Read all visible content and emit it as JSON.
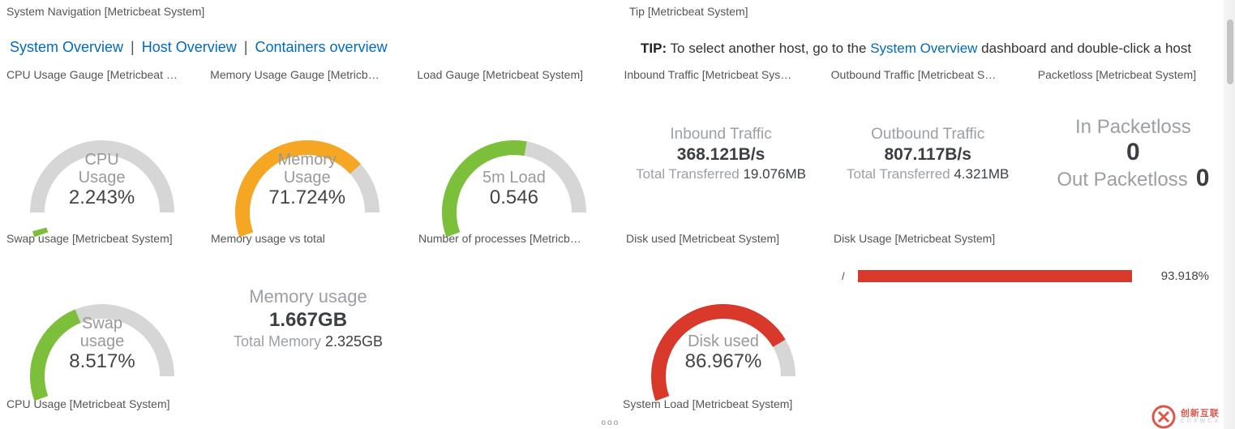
{
  "colors": {
    "link": "#016bb8",
    "text_muted": "#9ca0a5",
    "text_dark": "#3b3f44",
    "gauge_track": "#d6d6d6",
    "green": "#7bbf3a",
    "orange": "#f5a623",
    "red": "#d9392a",
    "scrollbar_thumb": "#c4c4c4"
  },
  "nav": {
    "title": "System Navigation [Metricbeat System]",
    "links": [
      "System Overview",
      "Host Overview",
      "Containers overview"
    ],
    "sep": "|"
  },
  "tip": {
    "title": "Tip [Metricbeat System]",
    "prefix": "TIP:",
    "before": " To select another host, go to the ",
    "link": "System Overview",
    "after": " dashboard and double-click a host name"
  },
  "gauges_row": [
    {
      "title": "CPU Usage Gauge [Metricbeat …",
      "label_top": "CPU",
      "label_bot": "Usage",
      "value_text": "2.243%",
      "value_pct": 2.243,
      "color": "#7bbf3a"
    },
    {
      "title": "Memory Usage Gauge [Metricb…",
      "label_top": "Memory",
      "label_bot": "Usage",
      "value_text": "71.724%",
      "value_pct": 71.724,
      "color": "#f5a623"
    },
    {
      "title": "Load Gauge [Metricbeat System]",
      "label_top": "5m Load",
      "label_bot": "",
      "value_text": "0.546",
      "value_pct": 54.6,
      "color": "#7bbf3a"
    }
  ],
  "traffic": {
    "inbound": {
      "title": "Inbound Traffic [Metricbeat Sys…",
      "label": "Inbound Traffic",
      "value": "368.121B/s",
      "sub_label": "Total Transferred ",
      "sub_value": "19.076MB"
    },
    "outbound": {
      "title": "Outbound Traffic [Metricbeat S…",
      "label": "Outbound Traffic",
      "value": "807.117B/s",
      "sub_label": "Total Transferred ",
      "sub_value": "4.321MB"
    }
  },
  "packetloss": {
    "title": "Packetloss [Metricbeat System]",
    "in_label": "In Packetloss",
    "in_value": "0",
    "out_label": "Out Packetloss",
    "out_value": "0"
  },
  "swap_row": {
    "swap": {
      "title": "Swap usage [Metricbeat System]",
      "label_top": "Swap",
      "label_bot": "usage",
      "value_text": "8.517%",
      "value_pct": 8.517,
      "color": "#7bbf3a",
      "pct_fill": 40
    },
    "memuse": {
      "title": "Memory usage vs total",
      "label": "Memory usage",
      "value": "1.667GB",
      "sub_label": "Total Memory ",
      "sub_value": "2.325GB"
    },
    "nproc": {
      "title": "Number of processes [Metricb…"
    },
    "diskg": {
      "title": "Disk used [Metricbeat System]",
      "label_top": "Disk used",
      "label_bot": "",
      "value_text": "86.967%",
      "value_pct": 86.967,
      "color": "#d9392a",
      "pct_fill": 77
    },
    "diskbar": {
      "title": "Disk Usage [Metricbeat System]",
      "category": "/",
      "pct_text": "93.918%",
      "pct": 93.918,
      "fill_color": "#d9392a"
    }
  },
  "bottom_titles": {
    "left": "CPU Usage [Metricbeat System]",
    "right": "System Load [Metricbeat System]"
  },
  "drag_handle_glyph": "ooo",
  "watermark": {
    "text": "创新互联",
    "sub": "CDXWCX"
  }
}
